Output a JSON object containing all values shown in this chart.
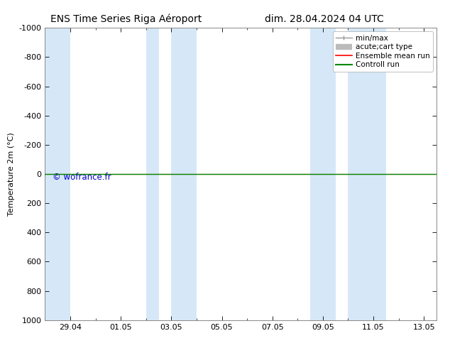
{
  "title_left": "ENS Time Series Riga Aéroport",
  "title_right": "dim. 28.04.2024 04 UTC",
  "ylabel": "Temperature 2m (°C)",
  "watermark": "© wofrance.fr",
  "watermark_color": "#0000cc",
  "ylim_bottom": 1000,
  "ylim_top": -1000,
  "yticks": [
    -1000,
    -800,
    -600,
    -400,
    -200,
    0,
    200,
    400,
    600,
    800,
    1000
  ],
  "xtick_positions": [
    1,
    3,
    5,
    7,
    9,
    11,
    13,
    15
  ],
  "xtick_labels": [
    "29.04",
    "01.05",
    "03.05",
    "05.05",
    "07.05",
    "09.05",
    "11.05",
    "13.05"
  ],
  "xlim": [
    0,
    15.5
  ],
  "bg_color": "#ffffff",
  "plot_bg_color": "#ffffff",
  "band_color": "#d6e8f8",
  "band_ranges": [
    [
      0,
      1.0
    ],
    [
      4.0,
      4.5
    ],
    [
      5.0,
      6.0
    ],
    [
      10.5,
      11.5
    ],
    [
      12.0,
      13.5
    ]
  ],
  "green_line_y": 0,
  "red_line_y": 0,
  "green_line_color": "#008800",
  "red_line_color": "#ff0000",
  "legend_items": [
    "min/max",
    "acute;cart type",
    "Ensemble mean run",
    "Controll run"
  ],
  "legend_line_colors": [
    "#999999",
    "#bbbbbb",
    "#ff0000",
    "#008800"
  ],
  "title_fontsize": 10,
  "axis_fontsize": 8,
  "tick_fontsize": 8,
  "legend_fontsize": 7.5
}
